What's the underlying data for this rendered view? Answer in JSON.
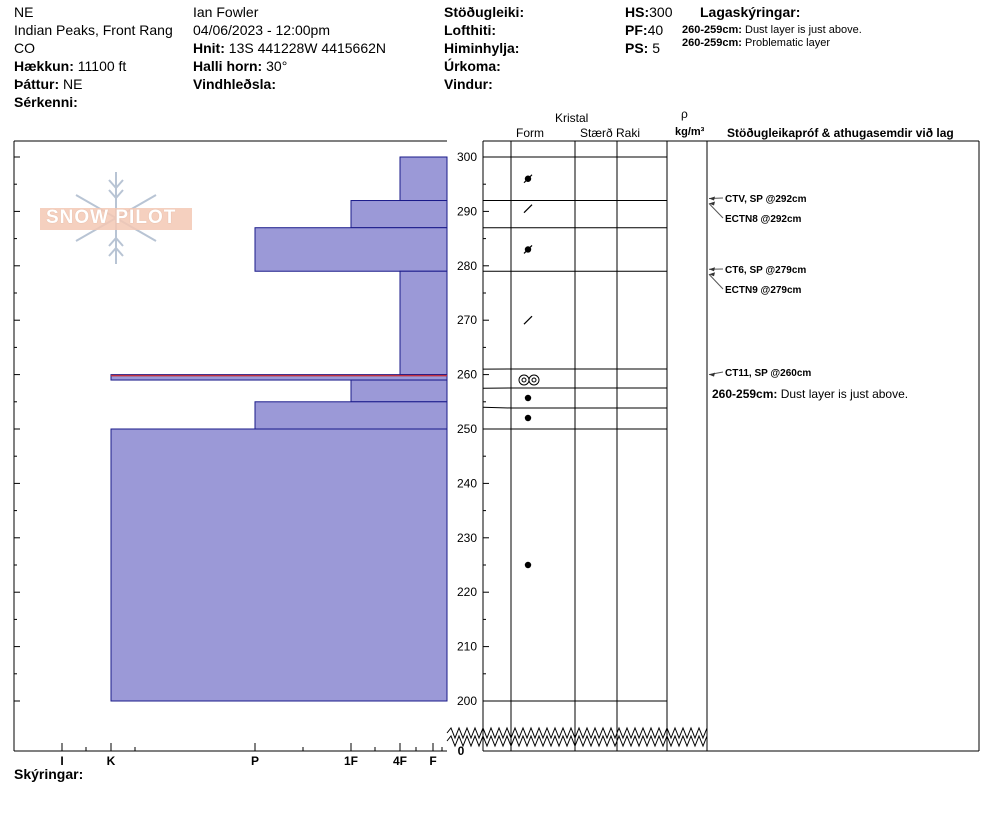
{
  "header": {
    "aspect": "NE",
    "location": "Indian Peaks, Front Rang",
    "state": "CO",
    "elevation_label": "Hækkun:",
    "elevation_value": "11100 ft",
    "aspect_label": "Þáttur:",
    "aspect_value": "NE",
    "features_label": "Sérkenni:",
    "observer": "Ian Fowler",
    "datetime": "04/06/2023 - 12:00pm",
    "coords_label": "Hnit:",
    "coords_value": "13S 441228W 4415662N",
    "slope_label": "Halli horn:",
    "slope_value": "30°",
    "wind_loading_label": "Vindhleðsla:",
    "stability_label": "Stöðugleiki:",
    "air_temp_label": "Lofthiti:",
    "sky_label": "Himinhylja:",
    "precip_label": "Úrkoma:",
    "wind_label": "Vindur:",
    "hs_label": "HS:",
    "hs_value": "300",
    "pf_label": "PF:",
    "pf_value": "40",
    "ps_label": "PS:",
    "ps_value": "5",
    "layer_notes_label": "Lagaskýringar:",
    "layer_notes": [
      {
        "range": "260-259cm:",
        "text": "Dust layer is just above."
      },
      {
        "range": "260-259cm:",
        "text": "Problematic layer"
      }
    ]
  },
  "columns": {
    "kristal": "Kristal",
    "form": "Form",
    "size": "Stærð",
    "moisture": "Raki",
    "rho": "ρ",
    "density_unit": "kg/m³",
    "tests_header": "Stöðugleikapróf & athugasemdir við lag"
  },
  "footer": {
    "comments_label": "Skýringar:"
  },
  "logo": {
    "text": "SNOW PILOT"
  },
  "chart_data": {
    "type": "bar",
    "y_axis": {
      "ylim_break": [
        0,
        200
      ],
      "ylim": [
        200,
        300
      ],
      "ticks": [
        300,
        290,
        280,
        270,
        260,
        250,
        240,
        230,
        220,
        210,
        200
      ],
      "zero_label": "0",
      "break": true
    },
    "x_axis": {
      "hardness_labels": [
        "I",
        "K",
        "P",
        "1F",
        "4F",
        "F"
      ],
      "direction": "right-to-left"
    },
    "hardness_layers": [
      {
        "top": 300,
        "bottom": 292,
        "hardness": "4F"
      },
      {
        "top": 292,
        "bottom": 287,
        "hardness": "1F"
      },
      {
        "top": 287,
        "bottom": 279,
        "hardness": "P"
      },
      {
        "top": 279,
        "bottom": 260,
        "hardness": "4F"
      },
      {
        "top": 260,
        "bottom": 259,
        "hardness": "K"
      },
      {
        "top": 259,
        "bottom": 255,
        "hardness": "1F"
      },
      {
        "top": 255,
        "bottom": 250,
        "hardness": "P"
      },
      {
        "top": 250,
        "bottom": 200,
        "hardness": "K"
      }
    ],
    "layer_boundaries": [
      300,
      292,
      287,
      279,
      261,
      257.5,
      254,
      250,
      200
    ],
    "grain_forms": [
      {
        "y": 296,
        "symbol": "mixed"
      },
      {
        "y": 290.5,
        "symbol": "slash"
      },
      {
        "y": 283,
        "symbol": "mixed"
      },
      {
        "y": 270,
        "symbol": "slash"
      },
      {
        "y": 259,
        "symbol": "double-ring"
      },
      {
        "y": 255.5,
        "symbol": "dot"
      },
      {
        "y": 252,
        "symbol": "dot"
      },
      {
        "y": 225,
        "symbol": "dot"
      }
    ],
    "stability_tests": [
      {
        "depth": 292,
        "label": "CTV, SP @292cm"
      },
      {
        "depth": 292,
        "label": "ECTN8 @292cm"
      },
      {
        "depth": 279,
        "label": "CT6, SP @279cm"
      },
      {
        "depth": 279,
        "label": "ECTN9 @279cm"
      },
      {
        "depth": 260,
        "label": "CT11, SP @260cm"
      }
    ],
    "layer_comment": {
      "depth": 260,
      "range": "260-259cm:",
      "text": "Dust layer is just above."
    }
  }
}
